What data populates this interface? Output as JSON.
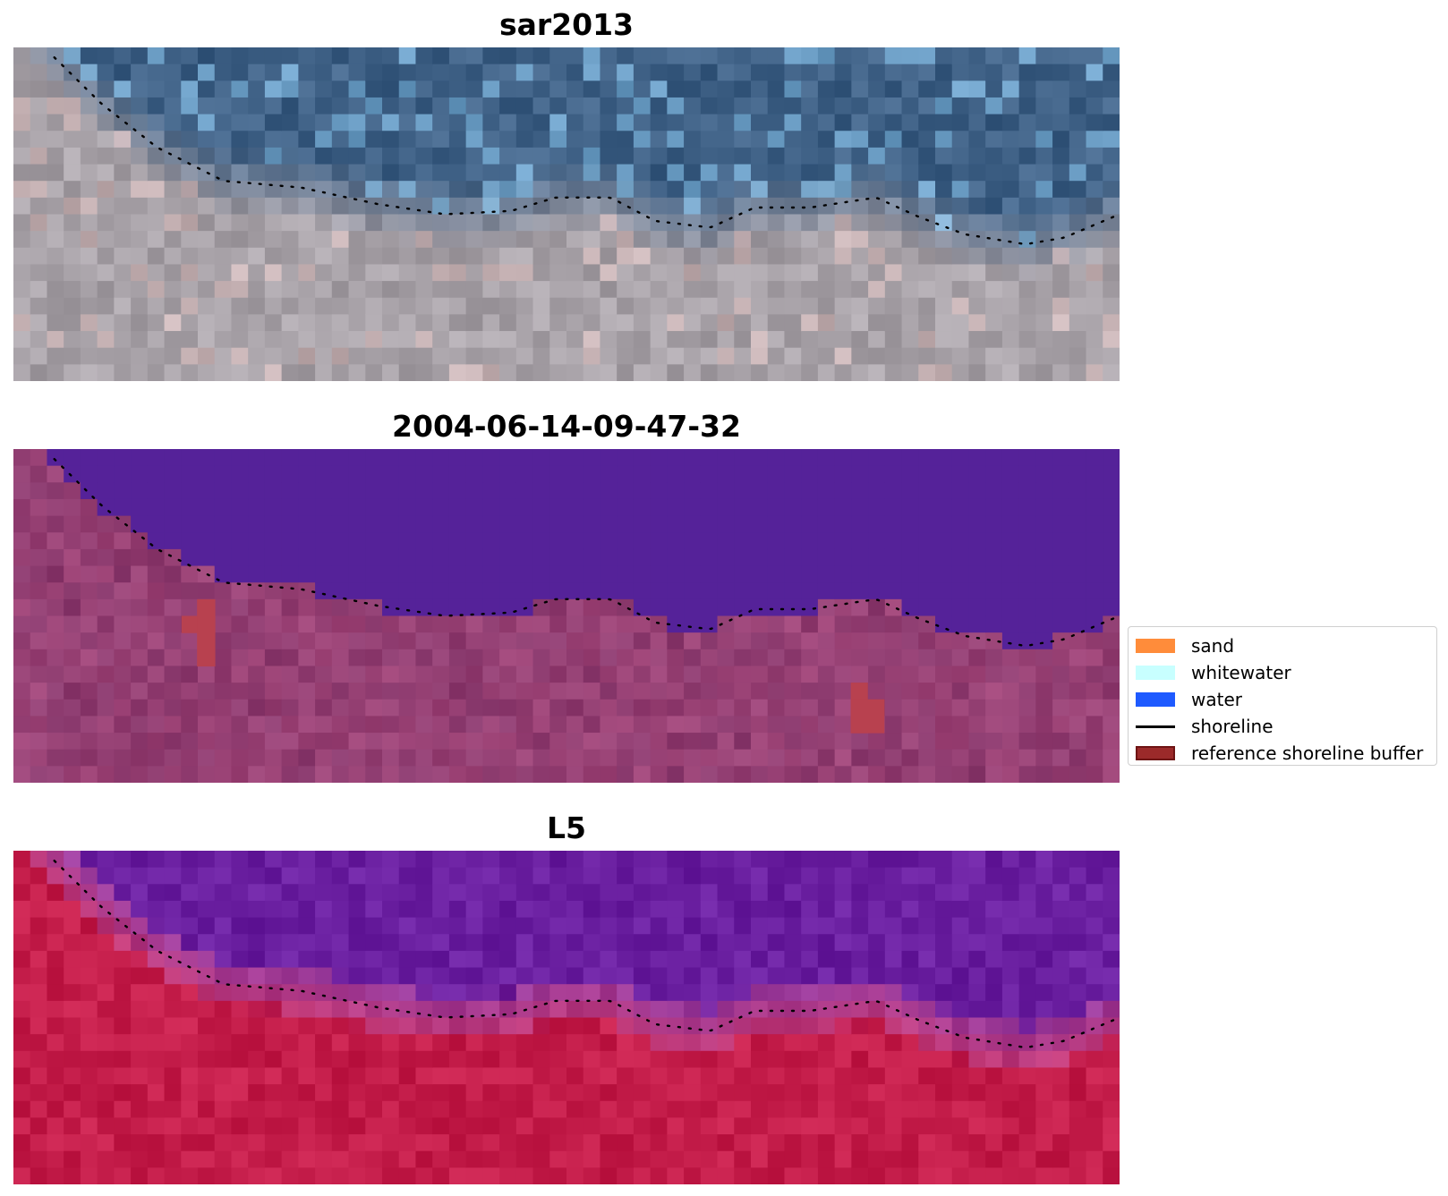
{
  "panels": [
    {
      "title": "sar2013",
      "style": "rgb"
    },
    {
      "title": "2004-06-14-09-47-32",
      "style": "classified"
    },
    {
      "title": "L5",
      "style": "index"
    }
  ],
  "legend": {
    "items": [
      {
        "label": "sand",
        "kind": "patch",
        "color": "#ff8c3a"
      },
      {
        "label": "whitewater",
        "kind": "patch",
        "color": "#c8ffff"
      },
      {
        "label": "water",
        "kind": "patch",
        "color": "#1e5aff"
      },
      {
        "label": "shoreline",
        "kind": "line",
        "color": "#000000"
      },
      {
        "label": "reference shoreline buffer",
        "kind": "patch",
        "color": "#9b2a2a",
        "edge": "#6e1414"
      }
    ]
  },
  "colors": {
    "water_class": "#552299",
    "land_class": "#8a3a6e",
    "buffer_patch": "#b8414f",
    "index_water": "#6a1fa0",
    "index_land": "#c41d4a",
    "rgb_water": "#3f6186",
    "rgb_land": "#a8a2a8"
  }
}
